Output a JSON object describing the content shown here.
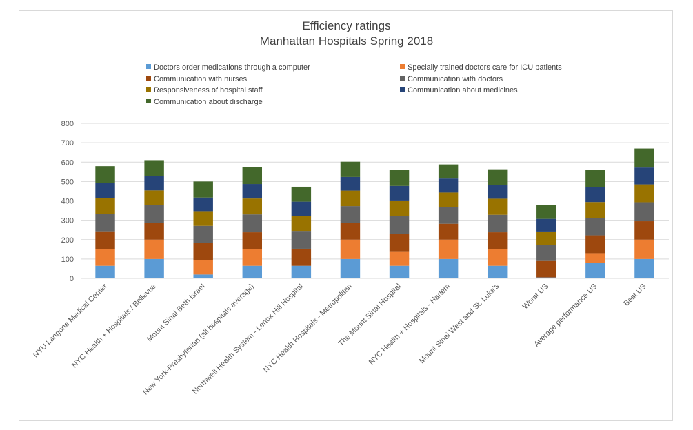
{
  "chart_data": {
    "type": "bar",
    "stacked": true,
    "title": "Efficiency ratings",
    "subtitle": "Manhattan Hospitals Spring 2018",
    "legend_position": "top",
    "grid": true,
    "ylim": [
      0,
      800
    ],
    "yticks": [
      0,
      100,
      200,
      300,
      400,
      500,
      600,
      700,
      800
    ],
    "categories": [
      "NYU Langone Medical Center",
      "NYC Health + Hospitals / Bellevue",
      "Mount Sinai Beth Israel",
      "New York-Presbyterian (all hospitals average)",
      "Northwell Health System - Lenox Hill Hospital",
      "NYC Health Hospitals - Metropolitan",
      "The Mount Sinai Hospital",
      "NYC Health + Hospitals - Harlem",
      "Mount Sinai West and  St. Luke's",
      "Worst US",
      "Average performance US",
      "Best US"
    ],
    "series": [
      {
        "name": "Doctors order medications through a computer",
        "color": "#5b9bd5",
        "values": [
          65,
          100,
          20,
          65,
          65,
          100,
          65,
          100,
          65,
          5,
          80,
          100
        ]
      },
      {
        "name": "Specially trained doctors care for ICU patients",
        "color": "#ed7d31",
        "values": [
          85,
          100,
          75,
          85,
          0,
          100,
          75,
          100,
          85,
          0,
          50,
          100
        ]
      },
      {
        "name": "Communication with nurses",
        "color": "#9e480e",
        "values": [
          93,
          85,
          88,
          88,
          88,
          85,
          88,
          82,
          88,
          85,
          92,
          95
        ]
      },
      {
        "name": "Communication with doctors",
        "color": "#636363",
        "values": [
          88,
          92,
          88,
          92,
          92,
          88,
          92,
          87,
          90,
          82,
          90,
          98
        ]
      },
      {
        "name": "Responsiveness of hospital staff",
        "color": "#997300",
        "values": [
          85,
          77,
          76,
          82,
          78,
          80,
          82,
          74,
          83,
          70,
          82,
          92
        ]
      },
      {
        "name": "Communication about medicines",
        "color": "#264478",
        "values": [
          78,
          73,
          70,
          75,
          73,
          70,
          75,
          72,
          70,
          65,
          78,
          87
        ]
      },
      {
        "name": "Communication about discharge",
        "color": "#43682b",
        "values": [
          85,
          83,
          83,
          86,
          77,
          79,
          83,
          73,
          82,
          70,
          88,
          98
        ]
      }
    ]
  }
}
